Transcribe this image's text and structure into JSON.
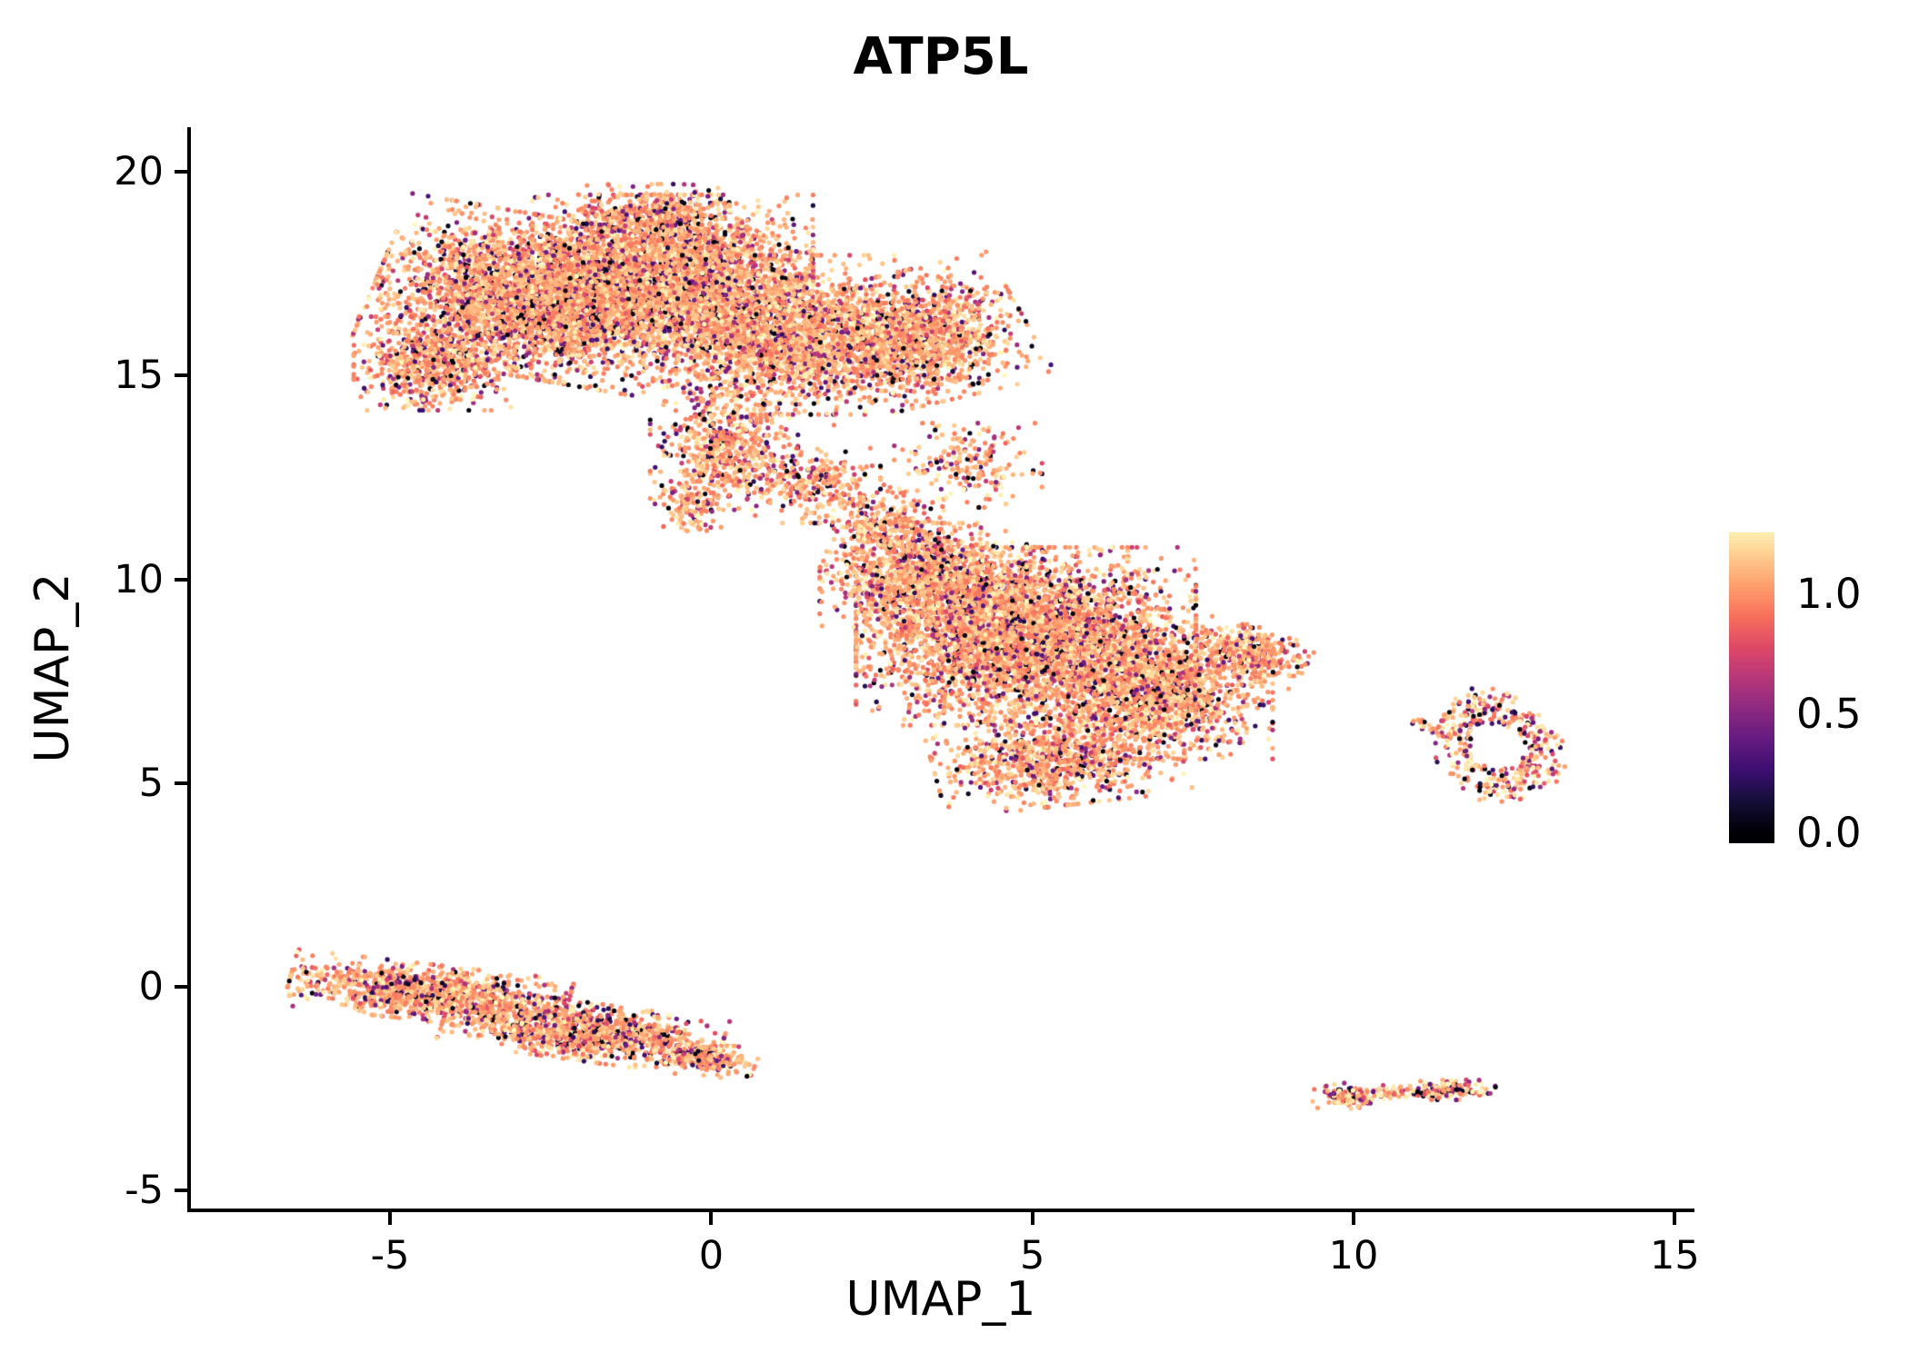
{
  "figure_title": "ATP5L",
  "chart_data": {
    "type": "scatter",
    "subtype": "umap-feature-plot",
    "title": "ATP5L",
    "xlabel": "UMAP_1",
    "ylabel": "UMAP_2",
    "xlim": [
      -8.1,
      15.25
    ],
    "ylim": [
      -5.45,
      21.1
    ],
    "x_ticks": [
      {
        "v": -5,
        "label": "-5"
      },
      {
        "v": 0,
        "label": "0"
      },
      {
        "v": 5,
        "label": "5"
      },
      {
        "v": 10,
        "label": "10"
      },
      {
        "v": 15,
        "label": "15"
      }
    ],
    "y_ticks": [
      {
        "v": -5,
        "label": "-5"
      },
      {
        "v": 0,
        "label": "0"
      },
      {
        "v": 5,
        "label": "5"
      },
      {
        "v": 10,
        "label": "10"
      },
      {
        "v": 15,
        "label": "15"
      },
      {
        "v": 20,
        "label": "20"
      }
    ],
    "grid": false,
    "background": "#ffffff",
    "point_radius_px": 2.6,
    "color_scale": {
      "name": "magma",
      "domain": [
        0,
        1.3
      ],
      "bar_range": [
        -0.04,
        1.26
      ],
      "ticks": [
        {
          "v": 1.0,
          "label": "1.0"
        },
        {
          "v": 0.5,
          "label": "0.5"
        },
        {
          "v": 0.0,
          "label": "0.0"
        }
      ],
      "stops": [
        "#000004",
        "#140e36",
        "#3b0f70",
        "#641a80",
        "#8c2981",
        "#b73779",
        "#de4968",
        "#f7705c",
        "#fe9f6d",
        "#fecf92",
        "#fcfdbf"
      ]
    },
    "value_distribution": [
      {
        "weight": 0.66,
        "range": [
          0.92,
          1.18
        ]
      },
      {
        "weight": 0.12,
        "range": [
          1.18,
          1.3
        ]
      },
      {
        "weight": 0.12,
        "range": [
          0.45,
          0.92
        ]
      },
      {
        "weight": 0.06,
        "range": [
          0.12,
          0.45
        ]
      },
      {
        "weight": 0.04,
        "range": [
          0.0,
          0.08
        ]
      }
    ],
    "clusters": [
      {
        "name": "upper-left-blob",
        "components": [
          {
            "cx": -2.6,
            "cy": 16.9,
            "rx": 2.3,
            "ry": 1.7,
            "rot": -15,
            "n": 4200
          },
          {
            "cx": -0.6,
            "cy": 17.6,
            "rx": 1.9,
            "ry": 1.6,
            "rot": 0,
            "n": 2600
          },
          {
            "cx": 0.9,
            "cy": 16.0,
            "rx": 1.7,
            "ry": 1.7,
            "rot": 0,
            "n": 2200
          },
          {
            "cx": 3.1,
            "cy": 15.9,
            "rx": 1.6,
            "ry": 1.4,
            "rot": 20,
            "n": 1700
          },
          {
            "cx": -4.3,
            "cy": 15.3,
            "rx": 1.1,
            "ry": 1.0,
            "rot": 0,
            "n": 700
          },
          {
            "cx": -0.9,
            "cy": 18.9,
            "rx": 1.2,
            "ry": 0.7,
            "rot": 0,
            "n": 350
          },
          {
            "cx": 0.2,
            "cy": 13.2,
            "rx": 1.0,
            "ry": 1.3,
            "rot": 0,
            "n": 600
          },
          {
            "cx": 1.6,
            "cy": 12.3,
            "rx": 0.9,
            "ry": 0.8,
            "rot": 0,
            "n": 300
          },
          {
            "cx": -0.3,
            "cy": 11.8,
            "rx": 0.5,
            "ry": 0.6,
            "rot": 0,
            "n": 120
          }
        ]
      },
      {
        "name": "central-blob",
        "components": [
          {
            "cx": 4.9,
            "cy": 8.6,
            "rx": 2.3,
            "ry": 1.9,
            "rot": 0,
            "n": 4300
          },
          {
            "cx": 3.3,
            "cy": 10.0,
            "rx": 1.4,
            "ry": 1.2,
            "rot": 0,
            "n": 1300
          },
          {
            "cx": 6.9,
            "cy": 7.2,
            "rx": 1.6,
            "ry": 1.4,
            "rot": 0,
            "n": 1600
          },
          {
            "cx": 5.4,
            "cy": 5.6,
            "rx": 1.7,
            "ry": 1.0,
            "rot": 10,
            "n": 1000
          },
          {
            "cx": 8.4,
            "cy": 8.2,
            "rx": 0.8,
            "ry": 0.55,
            "rot": -20,
            "n": 350
          },
          {
            "cx": 2.7,
            "cy": 11.4,
            "rx": 0.8,
            "ry": 0.8,
            "rot": 0,
            "n": 280
          },
          {
            "cx": 4.0,
            "cy": 12.8,
            "rx": 1.0,
            "ry": 0.9,
            "rot": 0,
            "n": 200
          }
        ]
      },
      {
        "name": "lower-left-streak",
        "components": [
          {
            "cx": -4.4,
            "cy": -0.15,
            "rx": 1.9,
            "ry": 0.6,
            "rot": -10,
            "n": 1200
          },
          {
            "cx": -2.0,
            "cy": -1.1,
            "rx": 1.9,
            "ry": 0.62,
            "rot": -12,
            "n": 1300
          },
          {
            "cx": -0.1,
            "cy": -1.75,
            "rx": 0.7,
            "ry": 0.35,
            "rot": -15,
            "n": 250
          }
        ]
      },
      {
        "name": "right-ring-cluster",
        "value_distribution": [
          {
            "weight": 0.4,
            "range": [
              0.92,
              1.18
            ]
          },
          {
            "weight": 0.25,
            "range": [
              1.18,
              1.3
            ]
          },
          {
            "weight": 0.18,
            "range": [
              0.45,
              0.92
            ]
          },
          {
            "weight": 0.1,
            "range": [
              0.12,
              0.45
            ]
          },
          {
            "weight": 0.07,
            "range": [
              0.0,
              0.08
            ]
          }
        ],
        "components": [
          {
            "cx": 12.25,
            "cy": 5.9,
            "rx": 0.95,
            "ry": 1.35,
            "rot": 15,
            "inner": 0.45,
            "shape": "ring",
            "n": 400
          },
          {
            "cx": 11.15,
            "cy": 6.45,
            "rx": 0.3,
            "ry": 0.2,
            "rot": 0,
            "n": 18
          }
        ]
      },
      {
        "name": "lower-right-small-clusters",
        "value_distribution": [
          {
            "weight": 0.4,
            "range": [
              0.92,
              1.18
            ]
          },
          {
            "weight": 0.25,
            "range": [
              1.18,
              1.3
            ]
          },
          {
            "weight": 0.18,
            "range": [
              0.45,
              0.92
            ]
          },
          {
            "weight": 0.1,
            "range": [
              0.12,
              0.45
            ]
          },
          {
            "weight": 0.07,
            "range": [
              0.0,
              0.08
            ]
          }
        ],
        "components": [
          {
            "cx": 9.95,
            "cy": -2.7,
            "rx": 0.5,
            "ry": 0.28,
            "rot": -5,
            "n": 130
          },
          {
            "cx": 11.35,
            "cy": -2.55,
            "rx": 0.75,
            "ry": 0.22,
            "rot": 5,
            "n": 150
          },
          {
            "cx": 10.65,
            "cy": -2.6,
            "rx": 0.3,
            "ry": 0.12,
            "rot": 0,
            "n": 25
          }
        ]
      }
    ]
  }
}
